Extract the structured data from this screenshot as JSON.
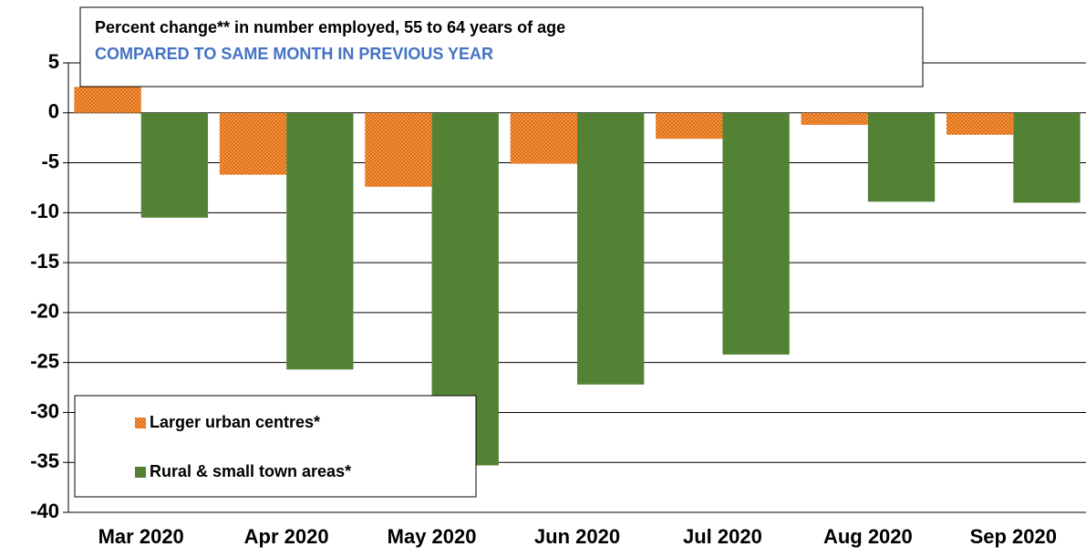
{
  "chart_data": {
    "type": "bar",
    "title": "Percent change** in number employed, 55 to 64 years of age",
    "subtitle": "COMPARED TO SAME MONTH IN PREVIOUS YEAR",
    "categories": [
      "Mar 2020",
      "Apr 2020",
      "May 2020",
      "Jun 2020",
      "Jul 2020",
      "Aug 2020",
      "Sep 2020"
    ],
    "series": [
      {
        "name": "Larger urban centres*",
        "color": "#e46c0a",
        "pattern": "dots",
        "values": [
          2.6,
          -6.2,
          -7.4,
          -5.1,
          -2.6,
          -1.2,
          -2.2
        ]
      },
      {
        "name": "Rural & small town areas*",
        "color": "#548235",
        "values": [
          -10.5,
          -25.7,
          -35.3,
          -27.2,
          -24.2,
          -8.9,
          -9.0
        ]
      }
    ],
    "ylim": [
      -40,
      5
    ],
    "yticks": [
      5,
      0,
      -5,
      -10,
      -15,
      -20,
      -25,
      -30,
      -35,
      -40
    ],
    "grid": true,
    "legend": "lower left"
  }
}
